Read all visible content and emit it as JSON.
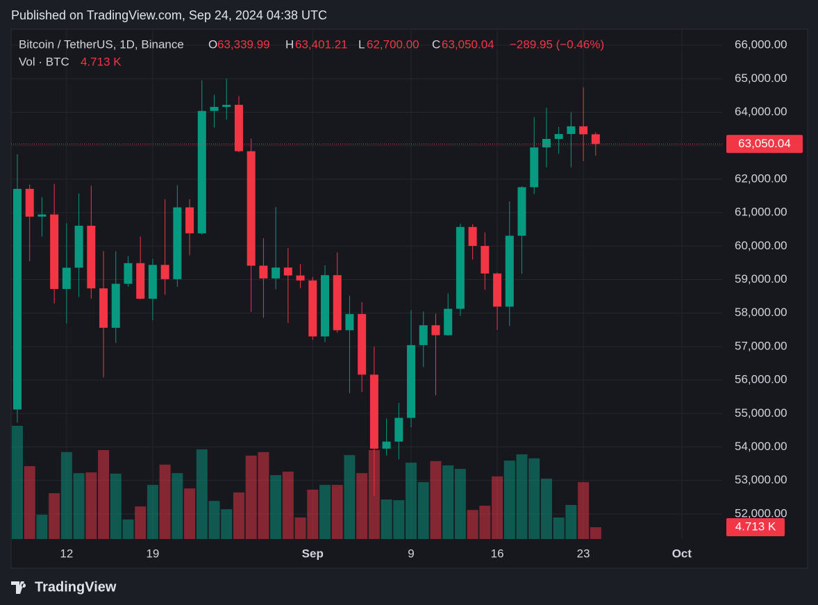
{
  "chart_data": {
    "type": "candlestick",
    "published": "Published on TradingView.com, Sep 24, 2024 04:38 UTC",
    "symbol": "Bitcoin / TetherUS, 1D, Binance",
    "legend": {
      "open_label": "O",
      "open": "63,339.99",
      "high_label": "H",
      "high": "63,401.21",
      "low_label": "L",
      "low": "62,700.00",
      "close_label": "C",
      "close": "63,050.04",
      "change": "−289.95 (−0.46%)"
    },
    "volume_title": "Vol · BTC",
    "brand": "TradingView",
    "up_color": "#089981",
    "down_color": "#f23645",
    "x": [
      "2024-08-08",
      "2024-08-09",
      "2024-08-10",
      "2024-08-11",
      "2024-08-12",
      "2024-08-13",
      "2024-08-14",
      "2024-08-15",
      "2024-08-16",
      "2024-08-17",
      "2024-08-18",
      "2024-08-19",
      "2024-08-20",
      "2024-08-21",
      "2024-08-22",
      "2024-08-23",
      "2024-08-24",
      "2024-08-25",
      "2024-08-26",
      "2024-08-27",
      "2024-08-28",
      "2024-08-29",
      "2024-08-30",
      "2024-08-31",
      "2024-09-01",
      "2024-09-02",
      "2024-09-03",
      "2024-09-04",
      "2024-09-05",
      "2024-09-06",
      "2024-09-07",
      "2024-09-08",
      "2024-09-09",
      "2024-09-10",
      "2024-09-11",
      "2024-09-12",
      "2024-09-13",
      "2024-09-14",
      "2024-09-15",
      "2024-09-16",
      "2024-09-17",
      "2024-09-18",
      "2024-09-19",
      "2024-09-20",
      "2024-09-21",
      "2024-09-22",
      "2024-09-23",
      "2024-09-24"
    ],
    "open": [
      55119,
      61710,
      60881,
      60945,
      58719,
      59356,
      60609,
      58737,
      57560,
      58874,
      59491,
      58427,
      59438,
      59013,
      61157,
      60381,
      64038,
      64157,
      64220,
      62834,
      59415,
      59034,
      59359,
      59123,
      58974,
      57301,
      59132,
      57487,
      57971,
      56160,
      53950,
      54160,
      54869,
      57042,
      57635,
      57339,
      58128,
      60571,
      60005,
      59182,
      58192,
      60309,
      61759,
      62948,
      63201,
      63348,
      63578,
      63339.99
    ],
    "high": [
      62745,
      61840,
      61464,
      61858,
      60680,
      61572,
      61800,
      59850,
      59847,
      59700,
      60284,
      59617,
      61400,
      61820,
      61400,
      64955,
      64522,
      65000,
      64481,
      63212,
      60234,
      61166,
      59944,
      59462,
      59076,
      59425,
      59809,
      58519,
      58327,
      56995,
      54850,
      55318,
      58088,
      58044,
      57981,
      58588,
      60670,
      60656,
      60409,
      59210,
      61338,
      61786,
      63850,
      64133,
      63559,
      64000,
      64745,
      63401.21
    ],
    "low": [
      54727,
      59550,
      60288,
      58286,
      57688,
      58478,
      58433,
      56078,
      57110,
      58786,
      58408,
      57787,
      58548,
      58783,
      59724,
      60342,
      63544,
      63773,
      62800,
      58034,
      57860,
      58713,
      57701,
      58744,
      57201,
      57128,
      57415,
      55606,
      55643,
      52550,
      53745,
      53629,
      54591,
      56386,
      55545,
      57324,
      57917,
      59600,
      58696,
      57493,
      57610,
      59174,
      61555,
      62350,
      62758,
      62357,
      62538,
      62700
    ],
    "close": [
      61710,
      60880,
      60945,
      58719,
      59354,
      60609,
      58737,
      57560,
      58874,
      59491,
      58427,
      59438,
      59013,
      61157,
      60381,
      64037,
      64157,
      64220,
      62834,
      59415,
      59034,
      59359,
      59123,
      58973,
      57301,
      59132,
      57487,
      57970,
      56160,
      53950,
      54160,
      54869,
      57042,
      57635,
      57339,
      58127,
      60571,
      60005,
      59182,
      58192,
      60309,
      61759,
      62947,
      63201,
      63348,
      63578,
      63339.99,
      63050.04
    ],
    "volume": [
      45.2,
      29.1,
      9.7,
      18.3,
      34.7,
      26.3,
      26.6,
      35.5,
      26.1,
      7.8,
      13.0,
      21.6,
      29.7,
      26.3,
      20.2,
      35.8,
      15.2,
      11.9,
      18.6,
      33.3,
      34.7,
      25.5,
      26.9,
      8.6,
      19.7,
      21.6,
      21.6,
      33.5,
      26.3,
      35.5,
      15.8,
      15.5,
      30.5,
      22.7,
      31.1,
      29.4,
      28.0,
      11.6,
      13.3,
      25.0,
      31.3,
      33.8,
      32.2,
      24.1,
      8.6,
      13.6,
      22.7,
      4.713
    ],
    "price_label": "63,050.04",
    "volume_label": "4.713 K",
    "ylim": [
      51250,
      66480
    ],
    "yticks": [
      {
        "value": 52000,
        "label": "52,000.00"
      },
      {
        "value": 53000,
        "label": "53,000.00"
      },
      {
        "value": 54000,
        "label": "54,000.00"
      },
      {
        "value": 55000,
        "label": "55,000.00"
      },
      {
        "value": 56000,
        "label": "56,000.00"
      },
      {
        "value": 57000,
        "label": "57,000.00"
      },
      {
        "value": 58000,
        "label": "58,000.00"
      },
      {
        "value": 59000,
        "label": "59,000.00"
      },
      {
        "value": 60000,
        "label": "60,000.00"
      },
      {
        "value": 61000,
        "label": "61,000.00"
      },
      {
        "value": 62000,
        "label": "62,000.00"
      },
      {
        "value": 63000,
        "label": "63,000.00"
      },
      {
        "value": 64000,
        "label": "64,000.00"
      },
      {
        "value": 65000,
        "label": "65,000.00"
      },
      {
        "value": 66000,
        "label": "66,000.00"
      }
    ],
    "xticks": [
      {
        "value": "2024-08-12",
        "label": "12"
      },
      {
        "value": "2024-08-19",
        "label": "19"
      },
      {
        "value": "2024-09-01",
        "label": "Sep"
      },
      {
        "value": "2024-09-09",
        "label": "9"
      },
      {
        "value": "2024-09-16",
        "label": "16"
      },
      {
        "value": "2024-09-23",
        "label": "23"
      },
      {
        "value": "2024-10-01",
        "label": "Oct"
      }
    ],
    "grid": true
  }
}
